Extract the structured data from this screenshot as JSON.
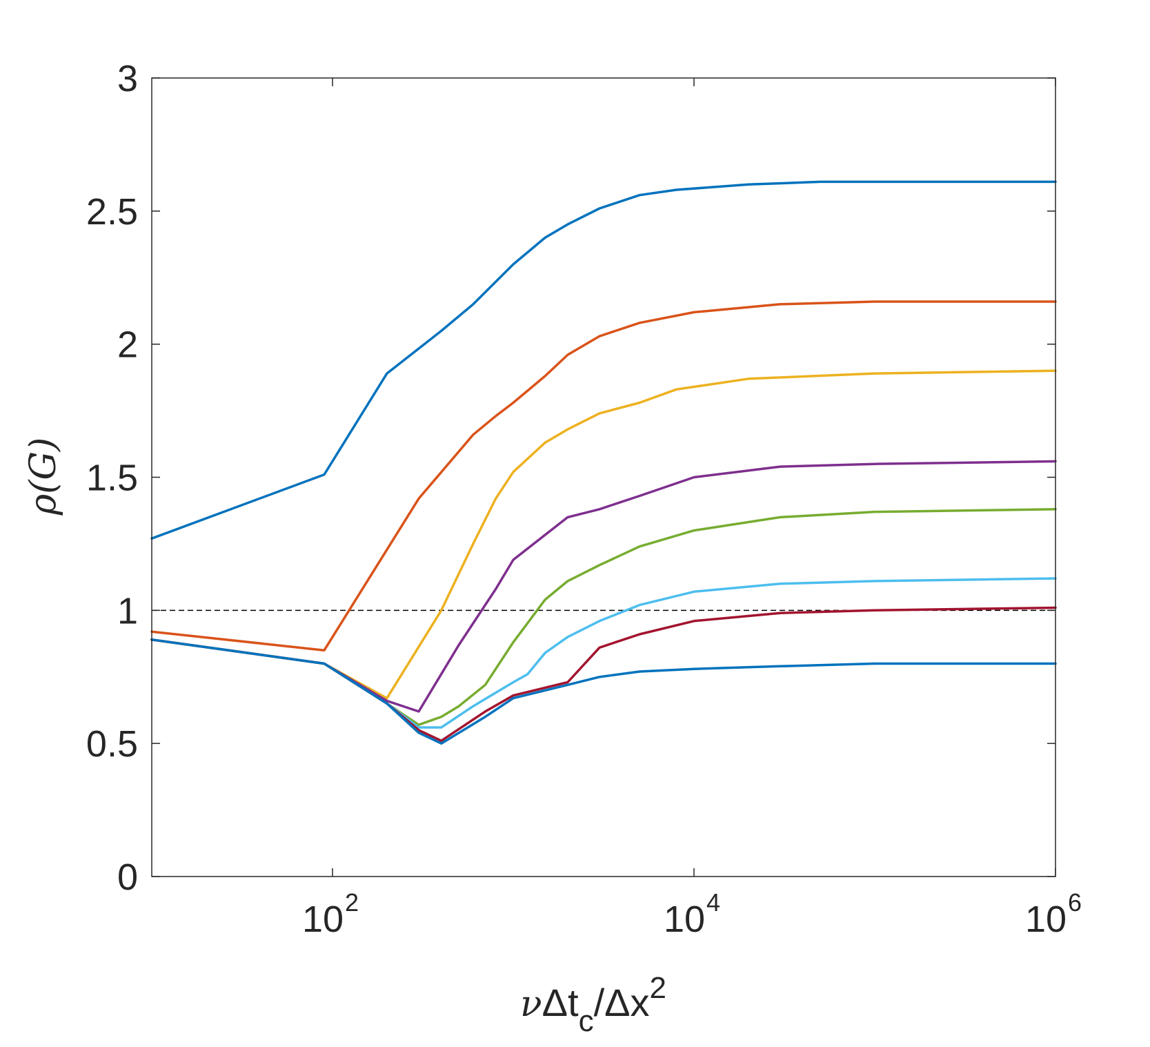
{
  "chart_data": {
    "type": "line",
    "title": "",
    "xlabel": "νΔt_c/Δx^2",
    "xlabel_parts": {
      "nu": "ν",
      "delta1": "Δt",
      "sub": "c",
      "slash": "/Δx",
      "sup": "2"
    },
    "ylabel": "ρ(G)",
    "xscale": "log",
    "xlim": [
      10,
      1000000
    ],
    "ylim": [
      0,
      3
    ],
    "xticks": [
      {
        "value": 100,
        "base": "10",
        "exp": "2"
      },
      {
        "value": 10000,
        "base": "10",
        "exp": "4"
      },
      {
        "value": 1000000,
        "base": "10",
        "exp": "6"
      }
    ],
    "yticks": [
      {
        "value": 0,
        "label": "0"
      },
      {
        "value": 0.5,
        "label": "0.5"
      },
      {
        "value": 1,
        "label": "1"
      },
      {
        "value": 1.5,
        "label": "1.5"
      },
      {
        "value": 2,
        "label": "2"
      },
      {
        "value": 2.5,
        "label": "2.5"
      },
      {
        "value": 3,
        "label": "3"
      }
    ],
    "grid": false,
    "box": true,
    "reference_line": {
      "y": 1,
      "style": "dashed",
      "color": "#000000"
    },
    "series": [
      {
        "color": "#0072BD",
        "x": [
          10,
          90,
          200,
          400,
          600,
          1000,
          1500,
          2000,
          3000,
          5000,
          8000,
          20000,
          50000,
          100000,
          1000000
        ],
        "y": [
          1.27,
          1.51,
          1.89,
          2.05,
          2.15,
          2.3,
          2.4,
          2.45,
          2.51,
          2.56,
          2.58,
          2.6,
          2.61,
          2.61,
          2.61
        ]
      },
      {
        "color": "#D95319",
        "x": [
          10,
          90,
          300,
          600,
          800,
          1000,
          1500,
          2000,
          3000,
          5000,
          10000,
          30000,
          100000,
          1000000
        ],
        "y": [
          0.92,
          0.85,
          1.42,
          1.66,
          1.73,
          1.78,
          1.88,
          1.96,
          2.03,
          2.08,
          2.12,
          2.15,
          2.16,
          2.16
        ]
      },
      {
        "color": "#EDB120",
        "x": [
          10,
          90,
          200,
          400,
          600,
          800,
          1000,
          1500,
          2000,
          3000,
          5000,
          8000,
          20000,
          100000,
          1000000
        ],
        "y": [
          0.89,
          0.8,
          0.67,
          1.0,
          1.25,
          1.42,
          1.52,
          1.63,
          1.68,
          1.74,
          1.78,
          1.83,
          1.87,
          1.89,
          1.9
        ]
      },
      {
        "color": "#7E2F8E",
        "x": [
          10,
          90,
          200,
          300,
          500,
          800,
          1000,
          2000,
          3000,
          5000,
          10000,
          30000,
          100000,
          1000000
        ],
        "y": [
          0.89,
          0.8,
          0.66,
          0.62,
          0.87,
          1.08,
          1.19,
          1.35,
          1.38,
          1.43,
          1.5,
          1.54,
          1.55,
          1.56
        ]
      },
      {
        "color": "#77AC30",
        "x": [
          10,
          90,
          200,
          300,
          400,
          500,
          700,
          1000,
          1500,
          2000,
          3000,
          5000,
          10000,
          30000,
          100000,
          1000000
        ],
        "y": [
          0.89,
          0.8,
          0.65,
          0.57,
          0.6,
          0.64,
          0.72,
          0.88,
          1.04,
          1.11,
          1.17,
          1.24,
          1.3,
          1.35,
          1.37,
          1.38
        ]
      },
      {
        "color": "#4DBEEE",
        "x": [
          10,
          90,
          200,
          300,
          400,
          600,
          1000,
          1200,
          1500,
          2000,
          3000,
          5000,
          10000,
          30000,
          100000,
          1000000
        ],
        "y": [
          0.89,
          0.8,
          0.65,
          0.56,
          0.56,
          0.64,
          0.73,
          0.76,
          0.84,
          0.9,
          0.96,
          1.02,
          1.07,
          1.1,
          1.11,
          1.12
        ]
      },
      {
        "color": "#A2142F",
        "x": [
          10,
          90,
          200,
          300,
          400,
          700,
          1000,
          2000,
          3000,
          5000,
          10000,
          30000,
          100000,
          1000000
        ],
        "y": [
          0.89,
          0.8,
          0.65,
          0.55,
          0.51,
          0.62,
          0.68,
          0.73,
          0.86,
          0.91,
          0.96,
          0.99,
          1.0,
          1.01
        ]
      },
      {
        "color": "#0072BD",
        "x": [
          10,
          90,
          200,
          300,
          400,
          700,
          1000,
          2000,
          3000,
          5000,
          10000,
          30000,
          100000,
          1000000
        ],
        "y": [
          0.89,
          0.8,
          0.65,
          0.54,
          0.5,
          0.6,
          0.67,
          0.72,
          0.75,
          0.77,
          0.78,
          0.79,
          0.8,
          0.8
        ]
      }
    ]
  }
}
